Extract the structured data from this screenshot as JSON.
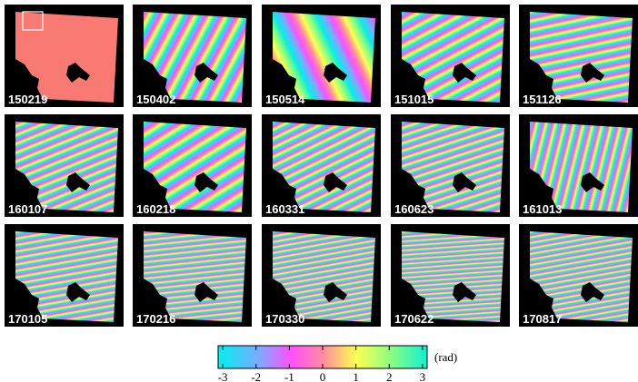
{
  "panels": [
    {
      "label": "150219"
    },
    {
      "label": "150402"
    },
    {
      "label": "150514"
    },
    {
      "label": "151015"
    },
    {
      "label": "151126"
    },
    {
      "label": "160107"
    },
    {
      "label": "160218"
    },
    {
      "label": "160331"
    },
    {
      "label": "160623"
    },
    {
      "label": "161013"
    },
    {
      "label": "170105"
    },
    {
      "label": "170216"
    },
    {
      "label": "170330"
    },
    {
      "label": "170622"
    },
    {
      "label": "170817"
    }
  ],
  "colorbar": {
    "lim": [
      -3.14,
      3.14
    ],
    "ticks": [
      -3,
      -2,
      -1,
      0,
      1,
      2,
      3
    ],
    "label": "(rad)"
  }
}
